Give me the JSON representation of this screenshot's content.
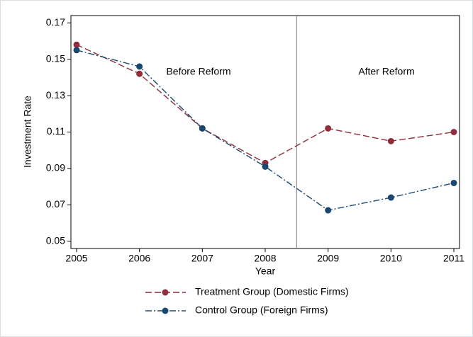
{
  "chart_data": {
    "type": "line",
    "x_label": "Year",
    "y_label": "Investment Rate",
    "x": [
      2005,
      2006,
      2007,
      2008,
      2009,
      2010,
      2011
    ],
    "series": [
      {
        "name": "Treatment Group (Domestic Firms)",
        "color": "#8f2d3a",
        "values": [
          0.158,
          0.142,
          0.112,
          0.093,
          0.112,
          0.105,
          0.11
        ]
      },
      {
        "name": "Control Group (Foreign Firms)",
        "color": "#1a476f",
        "values": [
          0.155,
          0.146,
          0.112,
          0.091,
          0.067,
          0.074,
          0.082
        ]
      }
    ],
    "xlim": [
      2005,
      2011
    ],
    "xticks": [
      2005,
      2006,
      2007,
      2008,
      2009,
      2010,
      2011
    ],
    "ylim": [
      0.046,
      0.174
    ],
    "yticks": [
      0.05,
      0.07,
      0.09,
      0.11,
      0.13,
      0.15,
      0.17
    ],
    "reform_line": 2008.5,
    "annotations": [
      "Before Reform",
      "After Reform"
    ],
    "grid": false,
    "legend": "bottom"
  }
}
